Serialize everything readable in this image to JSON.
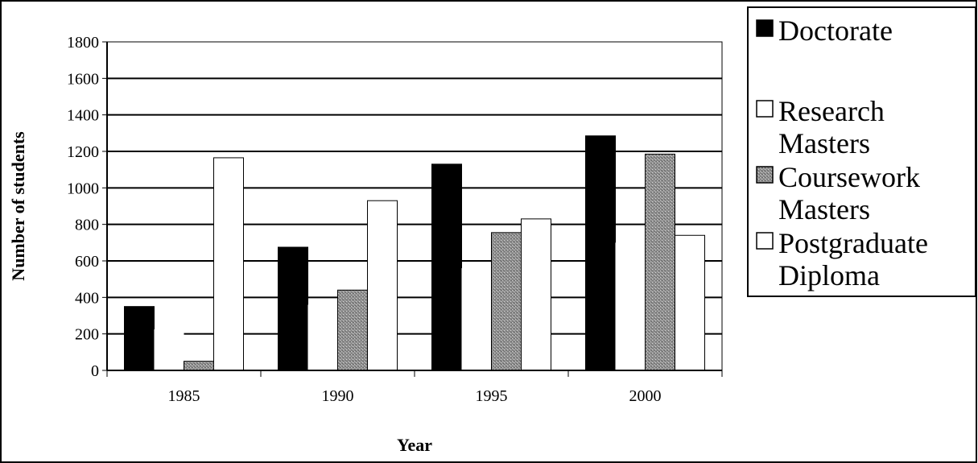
{
  "chart_data": {
    "type": "bar",
    "title": "",
    "xlabel": "Year",
    "ylabel": "Number of students",
    "categories": [
      "1985",
      "1990",
      "1995",
      "2000"
    ],
    "ylim": [
      0,
      1800
    ],
    "yticks": [
      0,
      200,
      400,
      600,
      800,
      1000,
      1200,
      1400,
      1600,
      1800
    ],
    "grid": true,
    "legend_position": "right",
    "series": [
      {
        "name": "Doctorate",
        "legend_lines": [
          "Doctorate"
        ],
        "values": [
          350,
          675,
          1130,
          1285
        ],
        "fill": "solid-black",
        "color": "#000000"
      },
      {
        "name": "Research Masters",
        "legend_lines": [
          "Research",
          "Masters"
        ],
        "values": [
          225,
          360,
          560,
          700
        ],
        "fill": "white",
        "color": "#ffffff"
      },
      {
        "name": "Coursework Masters",
        "legend_lines": [
          "Coursework",
          "Masters"
        ],
        "values": [
          50,
          440,
          755,
          1185
        ],
        "fill": "gray-stipple",
        "color": "#9a9a9a"
      },
      {
        "name": "Postgraduate Diploma",
        "legend_lines": [
          "Postgraduate",
          "Diploma"
        ],
        "values": [
          1165,
          930,
          830,
          740
        ],
        "fill": "white",
        "color": "#ffffff"
      }
    ]
  }
}
